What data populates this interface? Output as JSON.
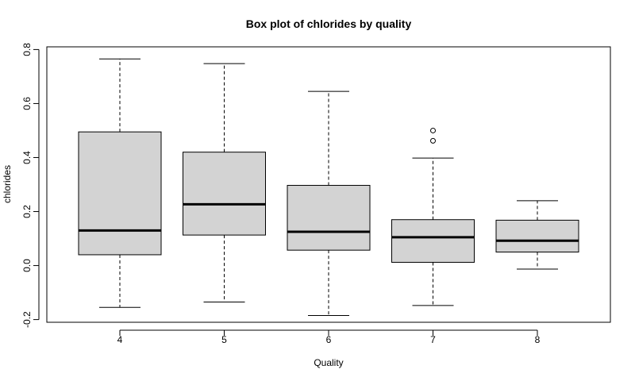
{
  "chart_data": {
    "type": "boxplot",
    "title": "Box plot of chlorides by quality",
    "xlabel": "Quality",
    "ylabel": "chlorides",
    "ylim": [
      -0.21,
      0.81
    ],
    "yticks": [
      "-0.2",
      "0.0",
      "0.2",
      "0.4",
      "0.6",
      "0.8"
    ],
    "categories": [
      "4",
      "5",
      "6",
      "7",
      "8"
    ],
    "box_fill": "#d3d3d3",
    "boxes": [
      {
        "category": "4",
        "whisker_low": -0.155,
        "q1": 0.04,
        "median": 0.13,
        "q3": 0.495,
        "whisker_high": 0.765,
        "outliers": []
      },
      {
        "category": "5",
        "whisker_low": -0.135,
        "q1": 0.113,
        "median": 0.227,
        "q3": 0.42,
        "whisker_high": 0.748,
        "outliers": []
      },
      {
        "category": "6",
        "whisker_low": -0.185,
        "q1": 0.057,
        "median": 0.125,
        "q3": 0.297,
        "whisker_high": 0.645,
        "outliers": []
      },
      {
        "category": "7",
        "whisker_low": -0.148,
        "q1": 0.012,
        "median": 0.105,
        "q3": 0.17,
        "whisker_high": 0.398,
        "outliers": [
          0.462,
          0.5
        ]
      },
      {
        "category": "8",
        "whisker_low": -0.013,
        "q1": 0.05,
        "median": 0.092,
        "q3": 0.168,
        "whisker_high": 0.24,
        "outliers": []
      }
    ],
    "grid": false,
    "legend": "none"
  }
}
